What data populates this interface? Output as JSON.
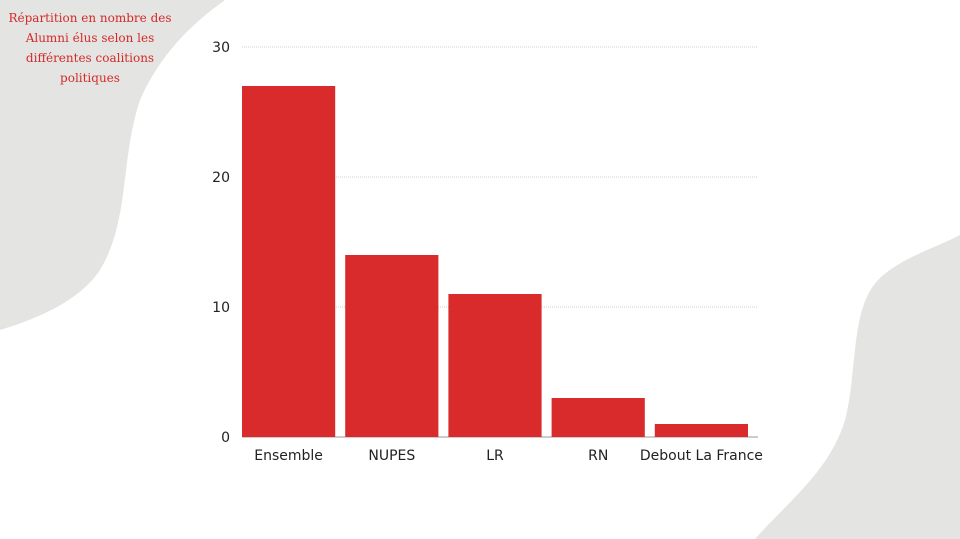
{
  "caption": "Répartition en nombre des Alumni élus selon les différentes coalitions politiques",
  "colors": {
    "bar": "#d92b2b",
    "background_shape": "#e4e4e2",
    "gridline": "#cfcfcf"
  },
  "chart_data": {
    "type": "bar",
    "title": "Répartition en nombre des Alumni élus selon les différentes coalitions politiques",
    "categories": [
      "Ensemble",
      "NUPES",
      "LR",
      "RN",
      "Debout La France"
    ],
    "values": [
      27,
      14,
      11,
      3,
      1
    ],
    "yticks": [
      0,
      10,
      20,
      30
    ],
    "ylim": [
      0,
      30
    ],
    "xlabel": "",
    "ylabel": "",
    "grid": true,
    "legend": "none"
  }
}
